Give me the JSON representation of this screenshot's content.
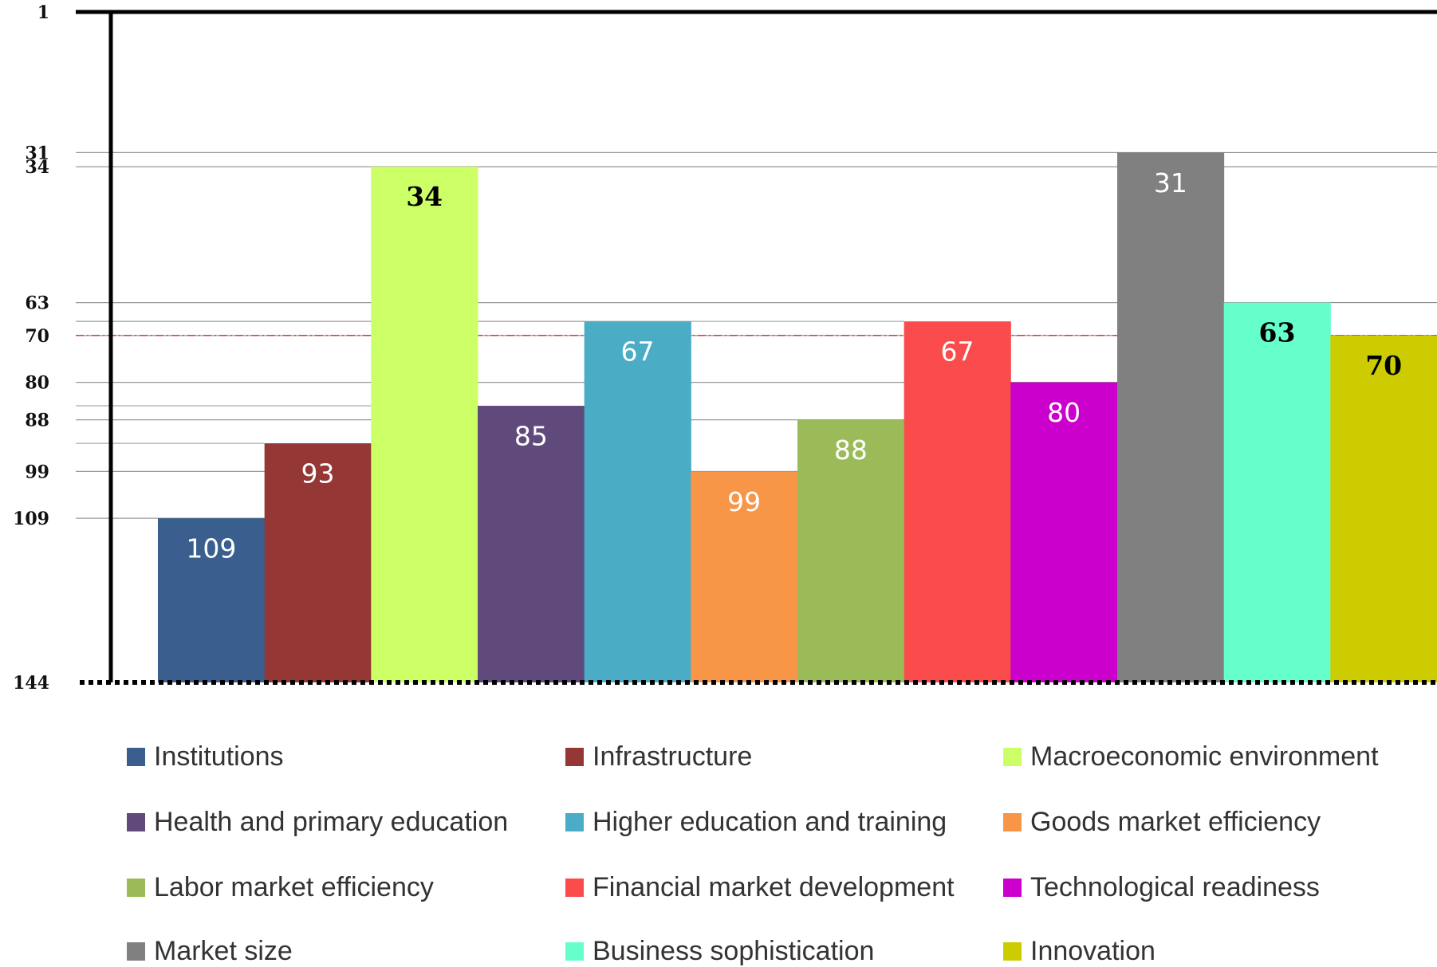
{
  "chart_data": {
    "type": "bar",
    "categories": [
      "Institutions",
      "Infrastructure",
      "Macroeconomic environment",
      "Health and primary education",
      "Higher education and training",
      "Goods market efficiency",
      "Labor market efficiency",
      "Financial market development",
      "Technological readiness",
      "Market size",
      "Business sophistication",
      "Innovation"
    ],
    "values": [
      109,
      93,
      34,
      85,
      67,
      99,
      88,
      67,
      80,
      31,
      63,
      70
    ],
    "colors": [
      "#3a5f8f",
      "#953735",
      "#ccff66",
      "#604a7b",
      "#4bacc6",
      "#f79646",
      "#9bbb59",
      "#fa4c4c",
      "#cc00cc",
      "#808080",
      "#66ffcc",
      "#cccc00"
    ],
    "ylim": [
      144,
      1
    ],
    "yticks": [
      1,
      31,
      34,
      63,
      70,
      80,
      88,
      99,
      109,
      144
    ],
    "reference_line": {
      "value": 70,
      "color": "#e03030"
    },
    "legend": "bottom"
  }
}
